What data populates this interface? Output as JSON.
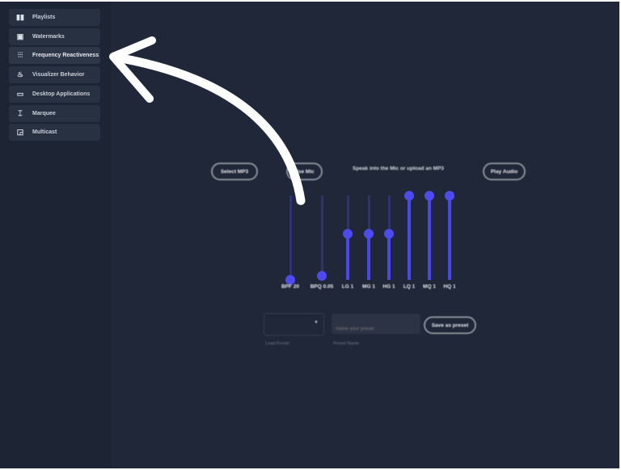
{
  "sidebar": {
    "items": [
      {
        "label": "Playlists",
        "icon": "playlist-icon",
        "active": false
      },
      {
        "label": "Watermarks",
        "icon": "watermark-icon",
        "active": false
      },
      {
        "label": "Frequency Reactiveness",
        "icon": "equalizer-icon",
        "active": true
      },
      {
        "label": "Visualizer Behavior",
        "icon": "flame-icon",
        "active": false
      },
      {
        "label": "Desktop Applications",
        "icon": "monitor-icon",
        "active": false
      },
      {
        "label": "Marquee",
        "icon": "marquee-icon",
        "active": false
      },
      {
        "label": "Multicast",
        "icon": "cast-icon",
        "active": false
      }
    ]
  },
  "main": {
    "select_mp3_label": "Select MP3",
    "use_mic_label": "Use Mic",
    "hint": "Speak into the Mic or upload an MP3",
    "play_audio_label": "Play Audio",
    "sliders": [
      {
        "label": "BPF 20",
        "value": 0.0
      },
      {
        "label": "BPQ 0.05",
        "value": 0.05
      },
      {
        "label": "LG 1",
        "value": 0.55
      },
      {
        "label": "MG 1",
        "value": 0.55
      },
      {
        "label": "HG 1",
        "value": 0.55
      },
      {
        "label": "LQ 1",
        "value": 1.0
      },
      {
        "label": "MQ 1",
        "value": 1.0
      },
      {
        "label": "HQ 1",
        "value": 1.0
      }
    ],
    "load_preset_label": "Load Preset",
    "preset_name_placeholder": "Name your preset",
    "preset_name_label": "Preset Name",
    "save_preset_label": "Save as preset"
  },
  "colors": {
    "accent": "#4d4af0",
    "background": "#1f2738",
    "annotation_arrow": "#ffffff"
  }
}
